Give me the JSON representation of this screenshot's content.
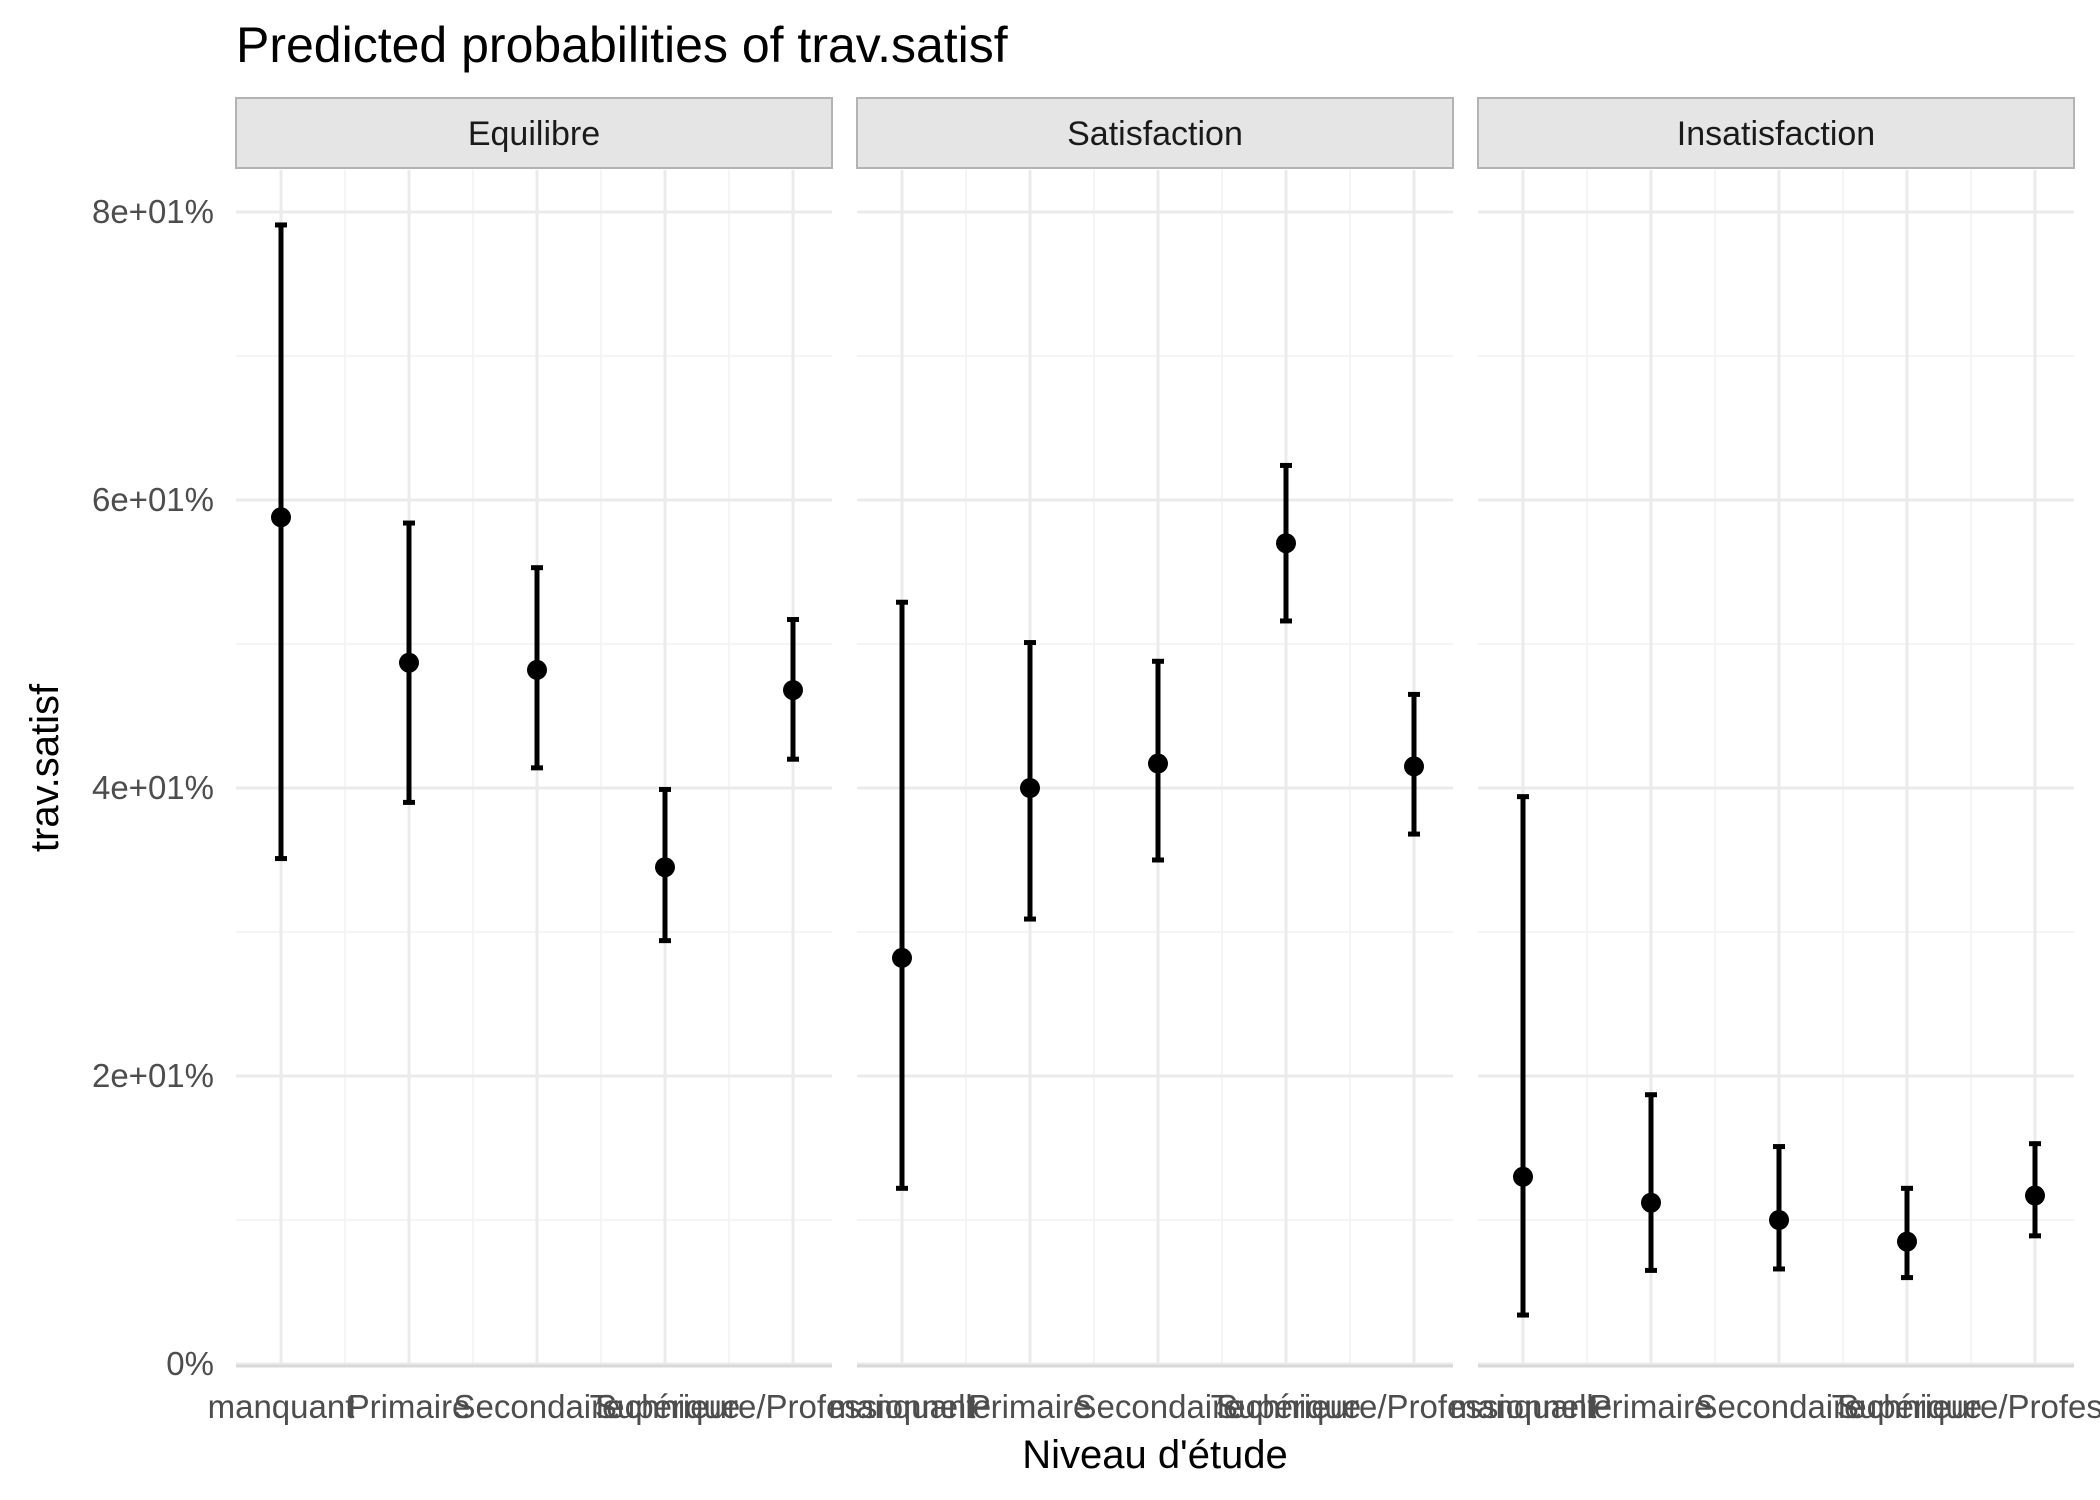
{
  "chart_data": {
    "type": "scatter",
    "title": "Predicted probabilities of trav.satisf",
    "xlabel": "Niveau d'étude",
    "ylabel": "trav.satisf",
    "ylim": [
      0,
      80
    ],
    "y_ticks": [
      0,
      20,
      40,
      60,
      80
    ],
    "y_tick_labels": [
      "0%",
      "2e+01%",
      "4e+01%",
      "6e+01%",
      "8e+01%"
    ],
    "categories": [
      "manquant",
      "Primaire",
      "Secondaire",
      "Technique",
      "Supérieure/Professionnelle"
    ],
    "grid": true,
    "error_bars": true,
    "panels": [
      {
        "name": "Equilibre",
        "values": [
          58.8,
          48.7,
          48.2,
          34.5,
          46.8
        ],
        "lower": [
          35.1,
          39.0,
          41.4,
          29.4,
          42.0
        ],
        "upper": [
          79.1,
          58.4,
          55.3,
          39.9,
          51.7
        ]
      },
      {
        "name": "Satisfaction",
        "values": [
          28.2,
          40.0,
          41.7,
          57.0,
          41.5
        ],
        "lower": [
          12.2,
          30.9,
          35.0,
          51.6,
          36.8
        ],
        "upper": [
          52.9,
          50.1,
          48.8,
          62.4,
          46.5
        ]
      },
      {
        "name": "Insatisfaction",
        "values": [
          13.0,
          11.2,
          10.0,
          8.5,
          11.7
        ],
        "lower": [
          3.4,
          6.5,
          6.6,
          6.0,
          8.9
        ],
        "upper": [
          39.4,
          18.7,
          15.1,
          12.2,
          15.3
        ]
      }
    ],
    "colors": {
      "point": "#000000",
      "grid_major": "#ebebeb",
      "grid_minor": "#f4f4f4",
      "strip_fill": "#e5e5e5",
      "strip_border": "#b3b3b3",
      "axis_line": "#d9d9d9"
    }
  }
}
